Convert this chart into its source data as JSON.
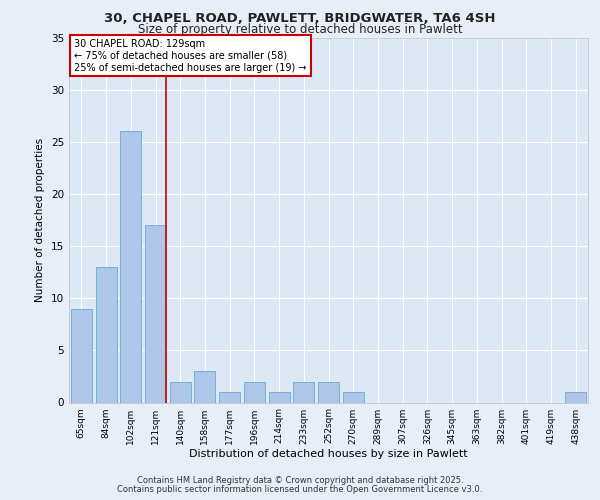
{
  "title1": "30, CHAPEL ROAD, PAWLETT, BRIDGWATER, TA6 4SH",
  "title2": "Size of property relative to detached houses in Pawlett",
  "xlabel": "Distribution of detached houses by size in Pawlett",
  "ylabel": "Number of detached properties",
  "categories": [
    "65sqm",
    "84sqm",
    "102sqm",
    "121sqm",
    "140sqm",
    "158sqm",
    "177sqm",
    "196sqm",
    "214sqm",
    "233sqm",
    "252sqm",
    "270sqm",
    "289sqm",
    "307sqm",
    "326sqm",
    "345sqm",
    "363sqm",
    "382sqm",
    "401sqm",
    "419sqm",
    "438sqm"
  ],
  "values": [
    9,
    13,
    26,
    17,
    2,
    3,
    1,
    2,
    1,
    2,
    2,
    1,
    0,
    0,
    0,
    0,
    0,
    0,
    0,
    0,
    1
  ],
  "bar_color": "#aec6e8",
  "bar_edge_color": "#6aaad4",
  "vline_x_index": 3,
  "vline_color": "#cc0000",
  "annotation_title": "30 CHAPEL ROAD: 129sqm",
  "annotation_line1": "← 75% of detached houses are smaller (58)",
  "annotation_line2": "25% of semi-detached houses are larger (19) →",
  "annotation_box_color": "#cc0000",
  "ylim": [
    0,
    35
  ],
  "yticks": [
    0,
    5,
    10,
    15,
    20,
    25,
    30,
    35
  ],
  "footer1": "Contains HM Land Registry data © Crown copyright and database right 2025.",
  "footer2": "Contains public sector information licensed under the Open Government Licence v3.0.",
  "fig_bg_color": "#e8eef7",
  "plot_bg_color": "#dce9f5"
}
